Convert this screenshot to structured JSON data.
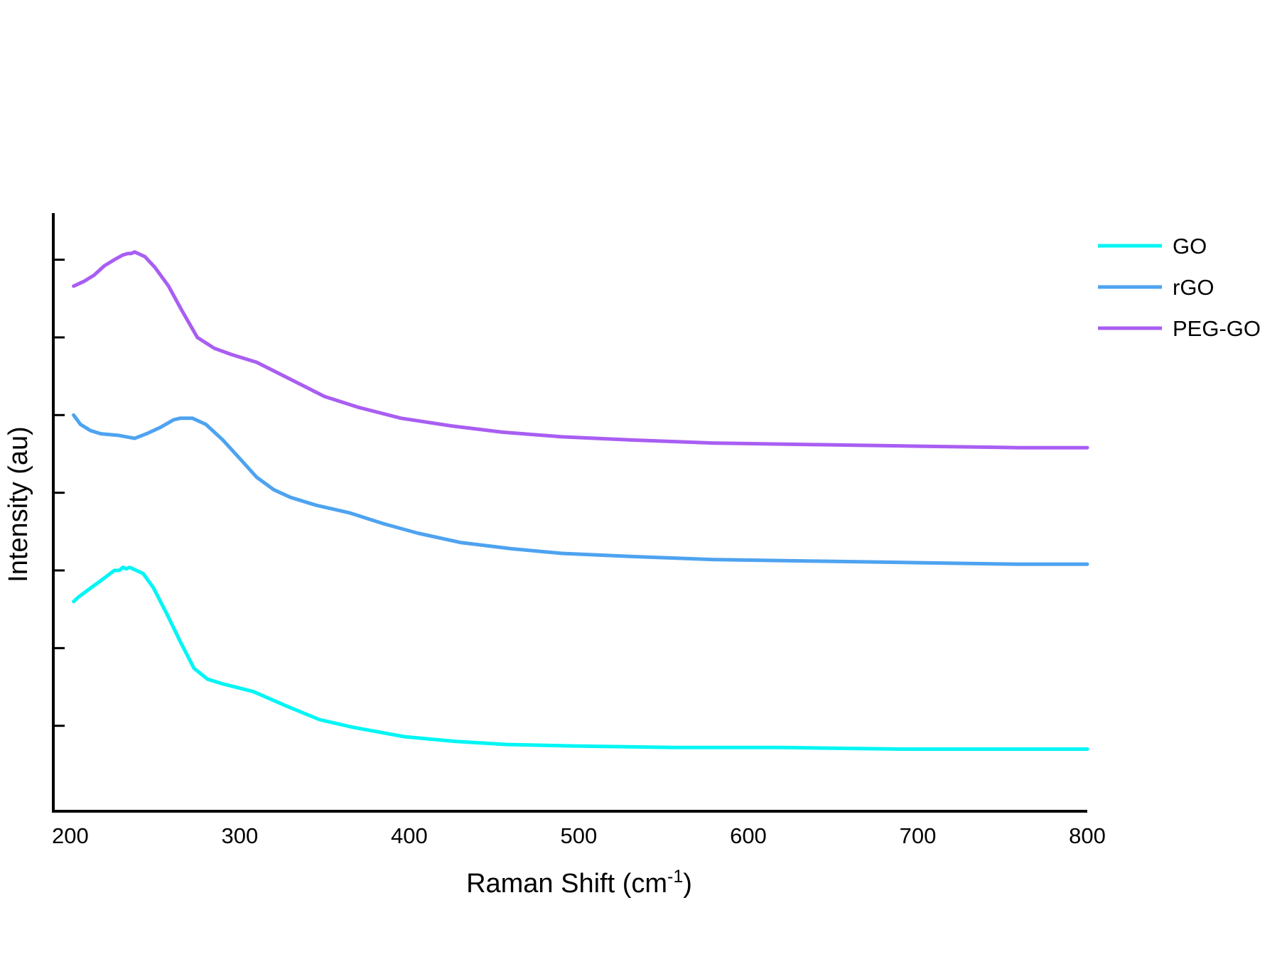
{
  "chart_data": {
    "type": "line",
    "title": "",
    "xlabel": "Raman Shift (cm",
    "xlabel_superscript": "-1",
    "xlabel_suffix": ")",
    "ylabel": "Intensity (au)",
    "xlim": [
      190,
      800
    ],
    "ylim": [
      -0.55,
      3.3
    ],
    "x_ticks": [
      200,
      300,
      400,
      500,
      600,
      700,
      800
    ],
    "y_ticks": [
      0,
      0.5,
      1,
      1.5,
      2,
      2.5,
      3
    ],
    "show_y_tick_labels": false,
    "grid": false,
    "legend": {
      "position": "top-right"
    },
    "series": [
      {
        "name": "GO",
        "color": "#00f5f5",
        "x": [
          202,
          205,
          210,
          215,
          220,
          226,
          229,
          231,
          233,
          235,
          237,
          239,
          243,
          249,
          257,
          265,
          273,
          281,
          290,
          308,
          327,
          347,
          367,
          397,
          427,
          457,
          497,
          557,
          620,
          690,
          760,
          800
        ],
        "y": [
          0.8,
          0.83,
          0.87,
          0.91,
          0.95,
          1.0,
          1.0,
          1.02,
          1.01,
          1.02,
          1.01,
          1.0,
          0.98,
          0.89,
          0.72,
          0.54,
          0.37,
          0.3,
          0.27,
          0.22,
          0.13,
          0.04,
          -0.01,
          -0.07,
          -0.1,
          -0.12,
          -0.13,
          -0.14,
          -0.14,
          -0.15,
          -0.15,
          -0.15
        ]
      },
      {
        "name": "rGO",
        "color": "#4ea3f0",
        "x": [
          202,
          206,
          212,
          218,
          228,
          238,
          245,
          253,
          261,
          265,
          272,
          280,
          290,
          300,
          310,
          320,
          330,
          345,
          365,
          385,
          405,
          430,
          460,
          490,
          530,
          580,
          640,
          700,
          760,
          800
        ],
        "y": [
          2.0,
          1.94,
          1.9,
          1.88,
          1.87,
          1.85,
          1.88,
          1.92,
          1.97,
          1.98,
          1.98,
          1.94,
          1.84,
          1.72,
          1.6,
          1.52,
          1.47,
          1.42,
          1.37,
          1.3,
          1.24,
          1.18,
          1.14,
          1.11,
          1.09,
          1.07,
          1.06,
          1.05,
          1.04,
          1.04
        ]
      },
      {
        "name": "PEG-GO",
        "color": "#a95ef2",
        "x": [
          202,
          208,
          214,
          220,
          226,
          231,
          234,
          236,
          238,
          240,
          244,
          250,
          258,
          266,
          275,
          285,
          295,
          310,
          330,
          350,
          370,
          395,
          425,
          455,
          490,
          530,
          580,
          640,
          700,
          760,
          800
        ],
        "y": [
          2.83,
          2.86,
          2.9,
          2.96,
          3.0,
          3.03,
          3.04,
          3.04,
          3.05,
          3.04,
          3.02,
          2.95,
          2.83,
          2.67,
          2.5,
          2.43,
          2.39,
          2.34,
          2.23,
          2.12,
          2.05,
          1.98,
          1.93,
          1.89,
          1.86,
          1.84,
          1.82,
          1.81,
          1.8,
          1.79,
          1.79
        ]
      }
    ]
  }
}
